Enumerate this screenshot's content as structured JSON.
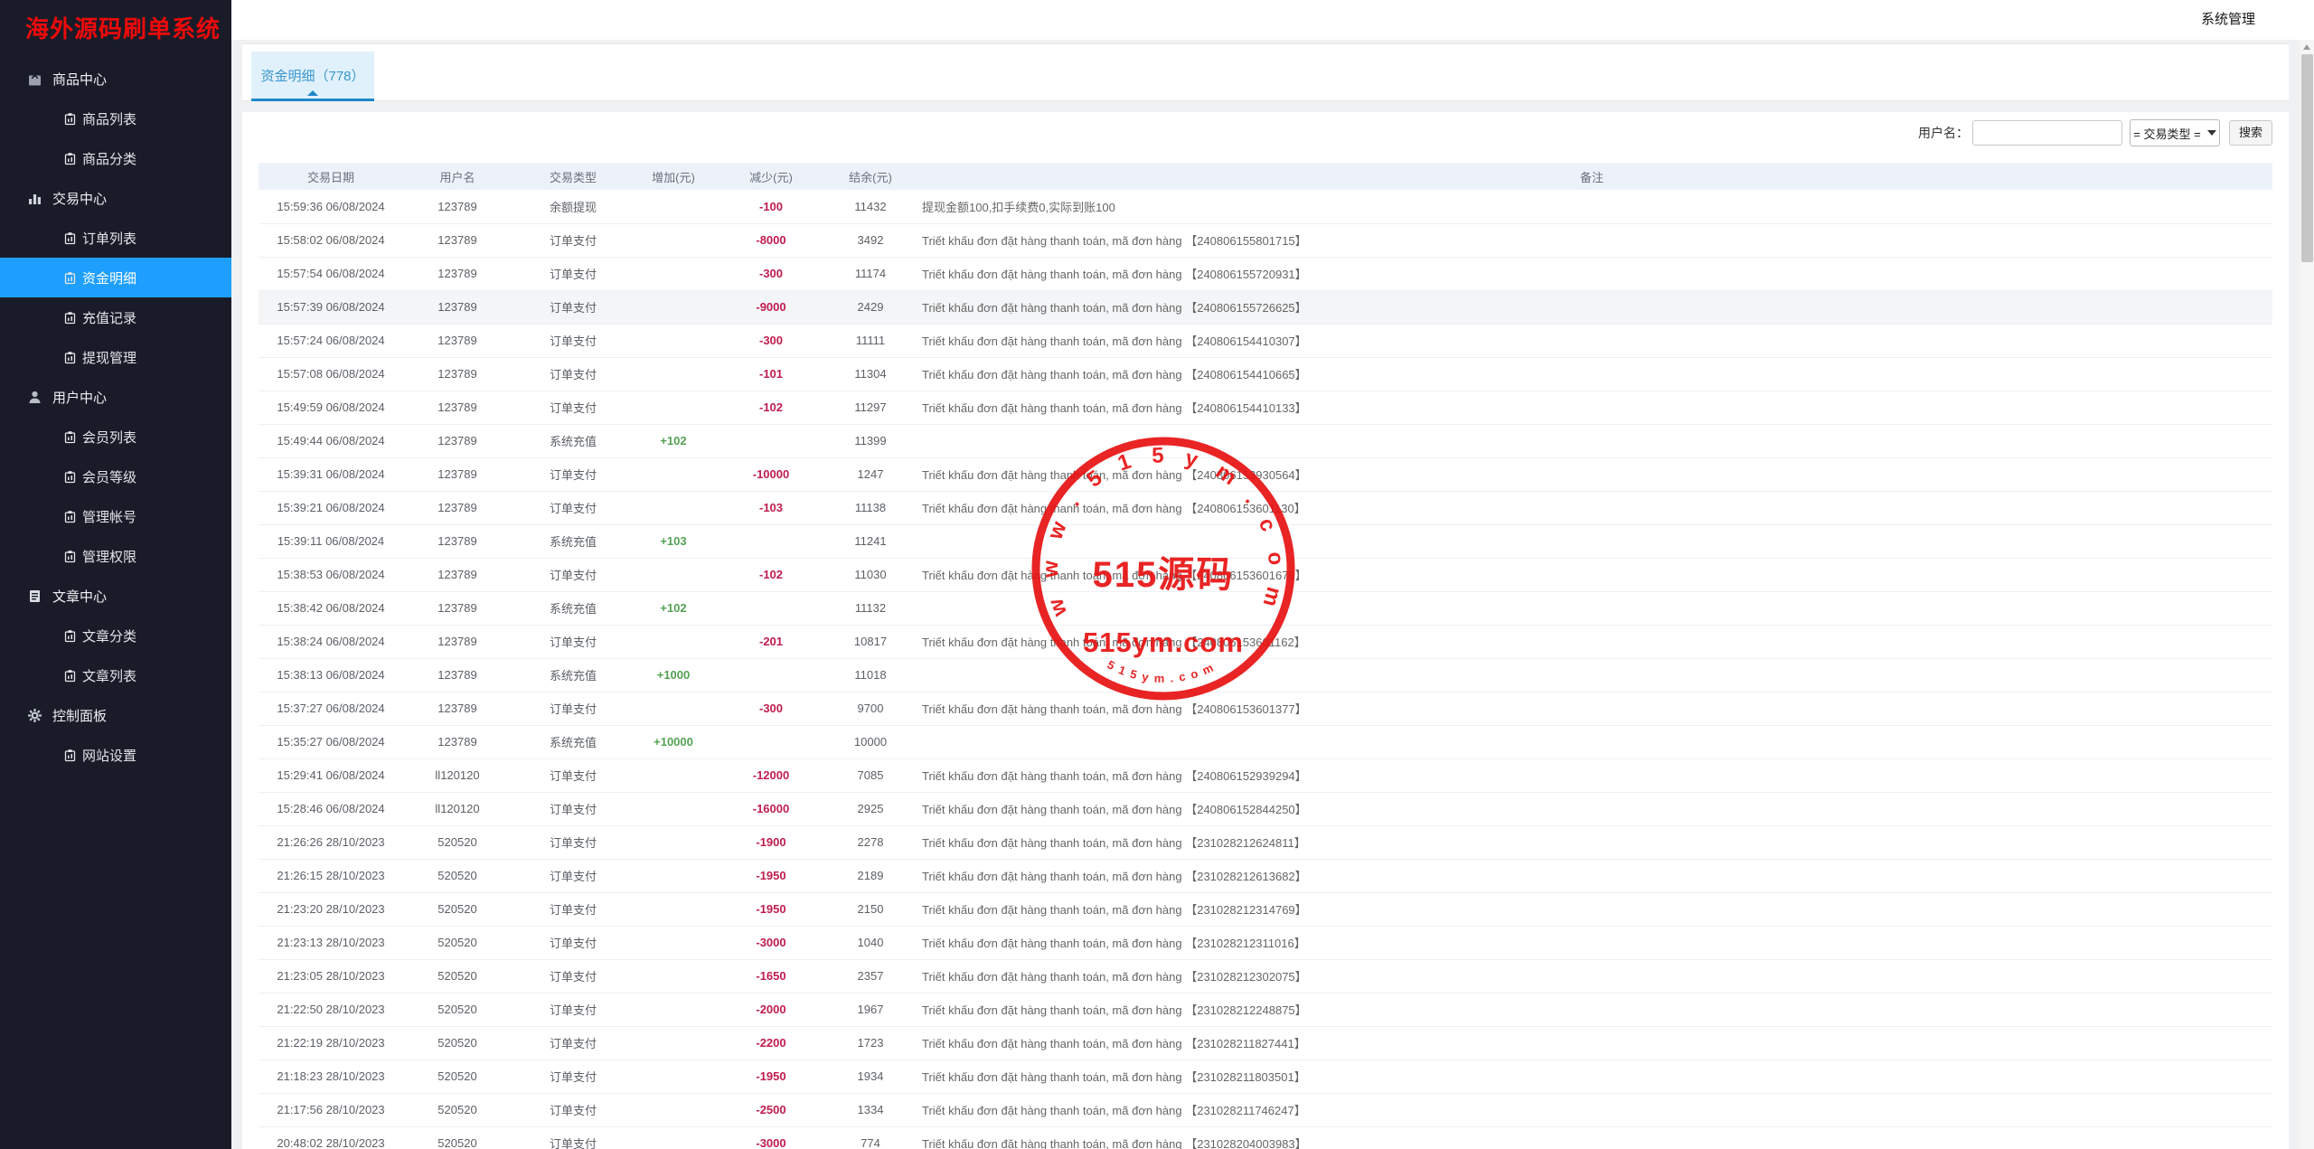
{
  "app": {
    "title": "海外源码刷单系统"
  },
  "topbar": {
    "admin_label": "系统管理"
  },
  "tabs": {
    "active": "资金明细（778）"
  },
  "filters": {
    "username_label": "用户名：",
    "username_value": "",
    "type_selected": "= 交易类型 =",
    "search_label": "搜索"
  },
  "sidebar": {
    "items": [
      {
        "label": "商品中心",
        "level": "group",
        "icon": "shopping-bag",
        "active": false
      },
      {
        "label": "商品列表",
        "level": "sub",
        "icon": "clipboard",
        "active": false
      },
      {
        "label": "商品分类",
        "level": "sub",
        "icon": "clipboard",
        "active": false
      },
      {
        "label": "交易中心",
        "level": "group",
        "icon": "bar-chart",
        "active": false
      },
      {
        "label": "订单列表",
        "level": "sub",
        "icon": "clipboard",
        "active": false
      },
      {
        "label": "资金明细",
        "level": "sub",
        "icon": "clipboard",
        "active": true
      },
      {
        "label": "充值记录",
        "level": "sub",
        "icon": "clipboard",
        "active": false
      },
      {
        "label": "提现管理",
        "level": "sub",
        "icon": "clipboard",
        "active": false
      },
      {
        "label": "用户中心",
        "level": "group",
        "icon": "user",
        "active": false
      },
      {
        "label": "会员列表",
        "level": "sub",
        "icon": "clipboard",
        "active": false
      },
      {
        "label": "会员等级",
        "level": "sub",
        "icon": "clipboard",
        "active": false
      },
      {
        "label": "管理帐号",
        "level": "sub",
        "icon": "clipboard",
        "active": false
      },
      {
        "label": "管理权限",
        "level": "sub",
        "icon": "clipboard",
        "active": false
      },
      {
        "label": "文章中心",
        "level": "group",
        "icon": "document",
        "active": false
      },
      {
        "label": "文章分类",
        "level": "sub",
        "icon": "clipboard",
        "active": false
      },
      {
        "label": "文章列表",
        "level": "sub",
        "icon": "clipboard",
        "active": false
      },
      {
        "label": "控制面板",
        "level": "group",
        "icon": "gear",
        "active": false
      },
      {
        "label": "网站设置",
        "level": "sub",
        "icon": "clipboard",
        "active": false
      }
    ]
  },
  "table": {
    "headers": [
      "交易日期",
      "用户名",
      "交易类型",
      "增加(元)",
      "减少(元)",
      "结余(元)",
      "备注"
    ],
    "rows": [
      {
        "date": "15:59:36 06/08/2024",
        "user": "123789",
        "type": "余额提现",
        "add": "",
        "sub": "-100",
        "balance": "11432",
        "remark": "提现金额100,扣手续费0,实际到账100",
        "highlight": false
      },
      {
        "date": "15:58:02 06/08/2024",
        "user": "123789",
        "type": "订单支付",
        "add": "",
        "sub": "-8000",
        "balance": "3492",
        "remark": "Triết khấu đơn đặt hàng thanh toán, mã đơn hàng 【240806155801715】",
        "highlight": false
      },
      {
        "date": "15:57:54 06/08/2024",
        "user": "123789",
        "type": "订单支付",
        "add": "",
        "sub": "-300",
        "balance": "11174",
        "remark": "Triết khấu đơn đặt hàng thanh toán, mã đơn hàng 【240806155720931】",
        "highlight": false
      },
      {
        "date": "15:57:39 06/08/2024",
        "user": "123789",
        "type": "订单支付",
        "add": "",
        "sub": "-9000",
        "balance": "2429",
        "remark": "Triết khấu đơn đặt hàng thanh toán, mã đơn hàng 【240806155726625】",
        "highlight": true
      },
      {
        "date": "15:57:24 06/08/2024",
        "user": "123789",
        "type": "订单支付",
        "add": "",
        "sub": "-300",
        "balance": "11111",
        "remark": "Triết khấu đơn đặt hàng thanh toán, mã đơn hàng 【240806154410307】",
        "highlight": false
      },
      {
        "date": "15:57:08 06/08/2024",
        "user": "123789",
        "type": "订单支付",
        "add": "",
        "sub": "-101",
        "balance": "11304",
        "remark": "Triết khấu đơn đặt hàng thanh toán, mã đơn hàng 【240806154410665】",
        "highlight": false
      },
      {
        "date": "15:49:59 06/08/2024",
        "user": "123789",
        "type": "订单支付",
        "add": "",
        "sub": "-102",
        "balance": "11297",
        "remark": "Triết khấu đơn đặt hàng thanh toán, mã đơn hàng 【240806154410133】",
        "highlight": false
      },
      {
        "date": "15:49:44 06/08/2024",
        "user": "123789",
        "type": "系统充值",
        "add": "+102",
        "sub": "",
        "balance": "11399",
        "remark": "",
        "highlight": false
      },
      {
        "date": "15:39:31 06/08/2024",
        "user": "123789",
        "type": "订单支付",
        "add": "",
        "sub": "-10000",
        "balance": "1247",
        "remark": "Triết khấu đơn đặt hàng thanh toán, mã đơn hàng 【240806153930564】",
        "highlight": false
      },
      {
        "date": "15:39:21 06/08/2024",
        "user": "123789",
        "type": "订单支付",
        "add": "",
        "sub": "-103",
        "balance": "11138",
        "remark": "Triết khấu đơn đặt hàng thanh toán, mã đơn hàng 【240806153601130】",
        "highlight": false
      },
      {
        "date": "15:39:11 06/08/2024",
        "user": "123789",
        "type": "系统充值",
        "add": "+103",
        "sub": "",
        "balance": "11241",
        "remark": "",
        "highlight": false
      },
      {
        "date": "15:38:53 06/08/2024",
        "user": "123789",
        "type": "订单支付",
        "add": "",
        "sub": "-102",
        "balance": "11030",
        "remark": "Triết khấu đơn đặt hàng thanh toán, mã đơn hàng 【240806153601676】",
        "highlight": false
      },
      {
        "date": "15:38:42 06/08/2024",
        "user": "123789",
        "type": "系统充值",
        "add": "+102",
        "sub": "",
        "balance": "11132",
        "remark": "",
        "highlight": false
      },
      {
        "date": "15:38:24 06/08/2024",
        "user": "123789",
        "type": "订单支付",
        "add": "",
        "sub": "-201",
        "balance": "10817",
        "remark": "Triết khấu đơn đặt hàng thanh toán, mã đơn hàng 【240806153601162】",
        "highlight": false
      },
      {
        "date": "15:38:13 06/08/2024",
        "user": "123789",
        "type": "系统充值",
        "add": "+1000",
        "sub": "",
        "balance": "11018",
        "remark": "",
        "highlight": false
      },
      {
        "date": "15:37:27 06/08/2024",
        "user": "123789",
        "type": "订单支付",
        "add": "",
        "sub": "-300",
        "balance": "9700",
        "remark": "Triết khấu đơn đặt hàng thanh toán, mã đơn hàng 【240806153601377】",
        "highlight": false
      },
      {
        "date": "15:35:27 06/08/2024",
        "user": "123789",
        "type": "系统充值",
        "add": "+10000",
        "sub": "",
        "balance": "10000",
        "remark": "",
        "highlight": false
      },
      {
        "date": "15:29:41 06/08/2024",
        "user": "ll120120",
        "type": "订单支付",
        "add": "",
        "sub": "-12000",
        "balance": "7085",
        "remark": "Triết khấu đơn đặt hàng thanh toán, mã đơn hàng 【240806152939294】",
        "highlight": false
      },
      {
        "date": "15:28:46 06/08/2024",
        "user": "ll120120",
        "type": "订单支付",
        "add": "",
        "sub": "-16000",
        "balance": "2925",
        "remark": "Triết khấu đơn đặt hàng thanh toán, mã đơn hàng 【240806152844250】",
        "highlight": false
      },
      {
        "date": "21:26:26 28/10/2023",
        "user": "520520",
        "type": "订单支付",
        "add": "",
        "sub": "-1900",
        "balance": "2278",
        "remark": "Triết khấu đơn đặt hàng thanh toán, mã đơn hàng 【231028212624811】",
        "highlight": false
      },
      {
        "date": "21:26:15 28/10/2023",
        "user": "520520",
        "type": "订单支付",
        "add": "",
        "sub": "-1950",
        "balance": "2189",
        "remark": "Triết khấu đơn đặt hàng thanh toán, mã đơn hàng 【231028212613682】",
        "highlight": false
      },
      {
        "date": "21:23:20 28/10/2023",
        "user": "520520",
        "type": "订单支付",
        "add": "",
        "sub": "-1950",
        "balance": "2150",
        "remark": "Triết khấu đơn đặt hàng thanh toán, mã đơn hàng 【231028212314769】",
        "highlight": false
      },
      {
        "date": "21:23:13 28/10/2023",
        "user": "520520",
        "type": "订单支付",
        "add": "",
        "sub": "-3000",
        "balance": "1040",
        "remark": "Triết khấu đơn đặt hàng thanh toán, mã đơn hàng 【231028212311016】",
        "highlight": false
      },
      {
        "date": "21:23:05 28/10/2023",
        "user": "520520",
        "type": "订单支付",
        "add": "",
        "sub": "-1650",
        "balance": "2357",
        "remark": "Triết khấu đơn đặt hàng thanh toán, mã đơn hàng 【231028212302075】",
        "highlight": false
      },
      {
        "date": "21:22:50 28/10/2023",
        "user": "520520",
        "type": "订单支付",
        "add": "",
        "sub": "-2000",
        "balance": "1967",
        "remark": "Triết khấu đơn đặt hàng thanh toán, mã đơn hàng 【231028212248875】",
        "highlight": false
      },
      {
        "date": "21:22:19 28/10/2023",
        "user": "520520",
        "type": "订单支付",
        "add": "",
        "sub": "-2200",
        "balance": "1723",
        "remark": "Triết khấu đơn đặt hàng thanh toán, mã đơn hàng 【231028211827441】",
        "highlight": false
      },
      {
        "date": "21:18:23 28/10/2023",
        "user": "520520",
        "type": "订单支付",
        "add": "",
        "sub": "-1950",
        "balance": "1934",
        "remark": "Triết khấu đơn đặt hàng thanh toán, mã đơn hàng 【231028211803501】",
        "highlight": false
      },
      {
        "date": "21:17:56 28/10/2023",
        "user": "520520",
        "type": "订单支付",
        "add": "",
        "sub": "-2500",
        "balance": "1334",
        "remark": "Triết khấu đơn đặt hàng thanh toán, mã đơn hàng 【231028211746247】",
        "highlight": false
      },
      {
        "date": "20:48:02 28/10/2023",
        "user": "520520",
        "type": "订单支付",
        "add": "",
        "sub": "-3000",
        "balance": "774",
        "remark": "Triết khấu đơn đặt hàng thanh toán, mã đơn hàng 【231028204003983】",
        "highlight": false
      }
    ]
  },
  "watermark": {
    "arc_top": "w w w . 5 1 5 y m . c o m",
    "center": "515源码",
    "domain": "515ym.com",
    "arc_bottom": "5 1 5 y m . c o m"
  },
  "colors": {
    "accent_blue": "#1e9fff",
    "tab_blue": "#1e88c8",
    "negative_red": "#bf1d4e",
    "positive_green": "#54a154",
    "stamp_red": "#e81212",
    "sidebar_bg": "#191c28",
    "logo_red": "#ee0a0a",
    "table_header_bg": "#edf2fa"
  }
}
